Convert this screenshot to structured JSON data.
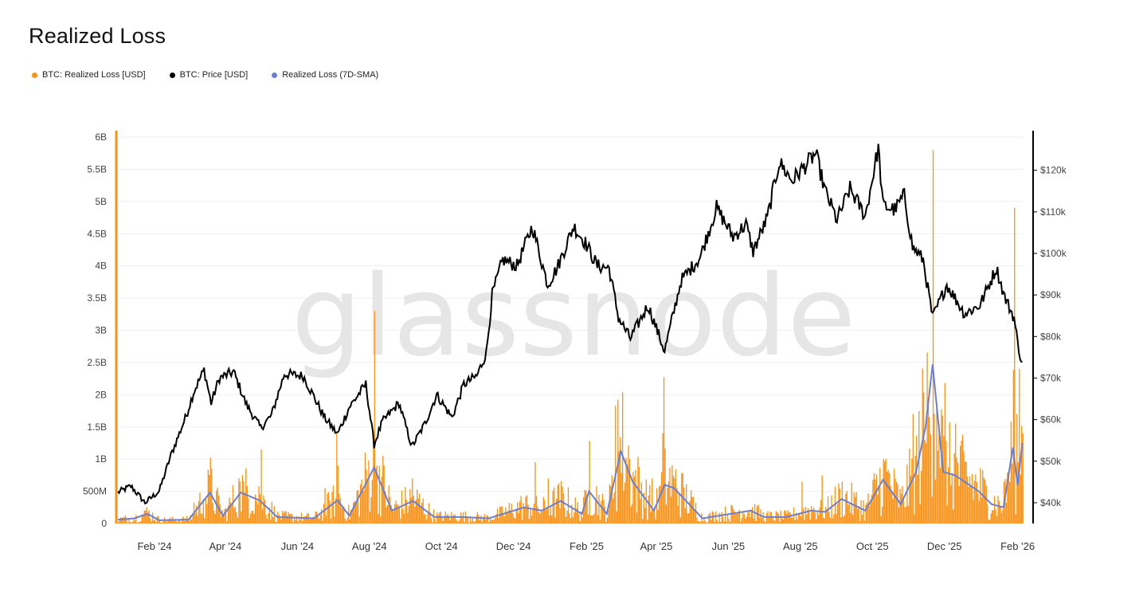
{
  "chart_data": {
    "type": "bar+line",
    "title": "Realized Loss",
    "watermark": "glassnode",
    "legend": [
      {
        "label": "BTC: Realized Loss [USD]",
        "color": "#f7931a"
      },
      {
        "label": "BTC: Price [USD]",
        "color": "#000000"
      },
      {
        "label": "Realized Loss (7D-SMA)",
        "color": "#6b7fcc"
      }
    ],
    "x_ticks": [
      "Feb '24",
      "Apr '24",
      "Jun '24",
      "Aug '24",
      "Oct '24",
      "Dec '24",
      "Feb '25",
      "Apr '25",
      "Jun '25",
      "Aug '25",
      "Oct '25",
      "Dec '25",
      "Feb '26"
    ],
    "y_left_ticks": [
      "0",
      "500M",
      "1B",
      "1.5B",
      "2B",
      "2.5B",
      "3B",
      "3.5B",
      "4B",
      "4.5B",
      "5B",
      "5.5B",
      "6B"
    ],
    "y_left_range": [
      0,
      6000000000
    ],
    "y_right_ticks": [
      "$40k",
      "$50k",
      "$60k",
      "$70k",
      "$80k",
      "$90k",
      "$100k",
      "$110k",
      "$120k"
    ],
    "y_right_range": [
      35000,
      128000
    ],
    "x_range": [
      "2024-01-01",
      "2026-02-06"
    ],
    "series": [
      {
        "name": "BTC: Price [USD]",
        "points": [
          [
            "2024-01-01",
            42500
          ],
          [
            "2024-01-12",
            44000
          ],
          [
            "2024-01-24",
            40000
          ],
          [
            "2024-02-05",
            42800
          ],
          [
            "2024-02-15",
            51500
          ],
          [
            "2024-02-28",
            61000
          ],
          [
            "2024-03-05",
            66500
          ],
          [
            "2024-03-14",
            72000
          ],
          [
            "2024-03-20",
            64000
          ],
          [
            "2024-03-27",
            70000
          ],
          [
            "2024-04-08",
            71500
          ],
          [
            "2024-04-19",
            63500
          ],
          [
            "2024-05-01",
            58000
          ],
          [
            "2024-05-10",
            61000
          ],
          [
            "2024-05-21",
            71000
          ],
          [
            "2024-06-06",
            70500
          ],
          [
            "2024-06-24",
            60500
          ],
          [
            "2024-07-05",
            56500
          ],
          [
            "2024-07-15",
            63000
          ],
          [
            "2024-07-29",
            68500
          ],
          [
            "2024-08-05",
            54000
          ],
          [
            "2024-08-12",
            59500
          ],
          [
            "2024-08-26",
            64000
          ],
          [
            "2024-09-06",
            53500
          ],
          [
            "2024-09-17",
            59000
          ],
          [
            "2024-09-27",
            66000
          ],
          [
            "2024-10-10",
            60500
          ],
          [
            "2024-10-20",
            68500
          ],
          [
            "2024-10-31",
            70500
          ],
          [
            "2024-11-08",
            76000
          ],
          [
            "2024-11-13",
            90000
          ],
          [
            "2024-11-22",
            98500
          ],
          [
            "2024-12-04",
            97000
          ],
          [
            "2024-12-17",
            106500
          ],
          [
            "2024-12-30",
            92500
          ],
          [
            "2025-01-07",
            96500
          ],
          [
            "2025-01-21",
            106500
          ],
          [
            "2025-01-31",
            102500
          ],
          [
            "2025-02-10",
            97000
          ],
          [
            "2025-02-20",
            96500
          ],
          [
            "2025-02-28",
            84500
          ],
          [
            "2025-03-10",
            79500
          ],
          [
            "2025-03-25",
            87500
          ],
          [
            "2025-04-08",
            76500
          ],
          [
            "2025-04-22",
            93500
          ],
          [
            "2025-05-08",
            99000
          ],
          [
            "2025-05-22",
            111000
          ],
          [
            "2025-06-05",
            104000
          ],
          [
            "2025-06-16",
            107000
          ],
          [
            "2025-06-22",
            100500
          ],
          [
            "2025-07-04",
            108500
          ],
          [
            "2025-07-14",
            122000
          ],
          [
            "2025-07-25",
            117500
          ],
          [
            "2025-08-14",
            124000
          ],
          [
            "2025-08-22",
            115000
          ],
          [
            "2025-09-01",
            108000
          ],
          [
            "2025-09-12",
            115500
          ],
          [
            "2025-09-25",
            109000
          ],
          [
            "2025-10-06",
            125500
          ],
          [
            "2025-10-10",
            111500
          ],
          [
            "2025-10-20",
            110500
          ],
          [
            "2025-10-28",
            114000
          ],
          [
            "2025-11-04",
            101500
          ],
          [
            "2025-11-13",
            98500
          ],
          [
            "2025-11-21",
            84500
          ],
          [
            "2025-12-03",
            92500
          ],
          [
            "2025-12-18",
            85500
          ],
          [
            "2025-12-31",
            87500
          ],
          [
            "2026-01-14",
            96500
          ],
          [
            "2026-01-21",
            89500
          ],
          [
            "2026-01-29",
            84500
          ],
          [
            "2026-02-01",
            78500
          ],
          [
            "2026-02-05",
            73000
          ]
        ]
      },
      {
        "name": "Realized Loss (7D-SMA)",
        "points": [
          [
            "2024-01-01",
            60000000
          ],
          [
            "2024-01-15",
            80000000
          ],
          [
            "2024-01-26",
            150000000
          ],
          [
            "2024-02-05",
            50000000
          ],
          [
            "2024-03-01",
            60000000
          ],
          [
            "2024-03-19",
            480000000
          ],
          [
            "2024-03-30",
            120000000
          ],
          [
            "2024-04-14",
            480000000
          ],
          [
            "2024-04-30",
            360000000
          ],
          [
            "2024-05-15",
            100000000
          ],
          [
            "2024-06-15",
            80000000
          ],
          [
            "2024-07-05",
            360000000
          ],
          [
            "2024-07-15",
            120000000
          ],
          [
            "2024-08-05",
            870000000
          ],
          [
            "2024-08-20",
            200000000
          ],
          [
            "2024-09-07",
            350000000
          ],
          [
            "2024-09-25",
            100000000
          ],
          [
            "2024-10-20",
            100000000
          ],
          [
            "2024-11-10",
            80000000
          ],
          [
            "2024-12-10",
            250000000
          ],
          [
            "2024-12-25",
            200000000
          ],
          [
            "2025-01-10",
            350000000
          ],
          [
            "2025-01-28",
            150000000
          ],
          [
            "2025-02-03",
            500000000
          ],
          [
            "2025-02-18",
            150000000
          ],
          [
            "2025-03-02",
            1120000000
          ],
          [
            "2025-03-12",
            650000000
          ],
          [
            "2025-03-30",
            200000000
          ],
          [
            "2025-04-08",
            600000000
          ],
          [
            "2025-04-16",
            550000000
          ],
          [
            "2025-05-10",
            80000000
          ],
          [
            "2025-06-20",
            200000000
          ],
          [
            "2025-07-01",
            100000000
          ],
          [
            "2025-07-20",
            100000000
          ],
          [
            "2025-08-10",
            200000000
          ],
          [
            "2025-08-22",
            180000000
          ],
          [
            "2025-09-05",
            380000000
          ],
          [
            "2025-09-25",
            200000000
          ],
          [
            "2025-10-10",
            680000000
          ],
          [
            "2025-10-25",
            300000000
          ],
          [
            "2025-11-07",
            800000000
          ],
          [
            "2025-11-15",
            1500000000
          ],
          [
            "2025-11-21",
            2470000000
          ],
          [
            "2025-11-30",
            800000000
          ],
          [
            "2025-12-10",
            750000000
          ],
          [
            "2025-12-30",
            500000000
          ],
          [
            "2026-01-10",
            300000000
          ],
          [
            "2026-01-20",
            250000000
          ],
          [
            "2026-01-28",
            1180000000
          ],
          [
            "2026-02-01",
            600000000
          ],
          [
            "2026-02-05",
            1250000000
          ]
        ]
      },
      {
        "name": "BTC: Realized Loss [USD]",
        "spikes": [
          [
            "2024-01-24",
            200000000
          ],
          [
            "2024-03-05",
            320000000
          ],
          [
            "2024-03-13",
            380000000
          ],
          [
            "2024-03-19",
            1020000000
          ],
          [
            "2024-04-13",
            650000000
          ],
          [
            "2024-04-17",
            480000000
          ],
          [
            "2024-04-30",
            450000000
          ],
          [
            "2024-05-01",
            1150000000
          ],
          [
            "2024-06-24",
            550000000
          ],
          [
            "2024-07-04",
            1400000000
          ],
          [
            "2024-07-05",
            900000000
          ],
          [
            "2024-08-05",
            3300000000
          ],
          [
            "2024-08-07",
            900000000
          ],
          [
            "2024-09-06",
            700000000
          ],
          [
            "2024-12-19",
            950000000
          ],
          [
            "2024-12-30",
            700000000
          ],
          [
            "2025-02-03",
            1280000000
          ],
          [
            "2025-02-25",
            1830000000
          ],
          [
            "2025-02-27",
            1920000000
          ],
          [
            "2025-03-09",
            1000000000
          ],
          [
            "2025-03-28",
            700000000
          ],
          [
            "2025-04-06",
            1400000000
          ],
          [
            "2025-04-07",
            2270000000
          ],
          [
            "2025-04-16",
            700000000
          ],
          [
            "2025-08-02",
            650000000
          ],
          [
            "2025-08-19",
            750000000
          ],
          [
            "2025-10-10",
            1000000000
          ],
          [
            "2025-11-04",
            1700000000
          ],
          [
            "2025-11-14",
            1300000000
          ],
          [
            "2025-11-18",
            1650000000
          ],
          [
            "2025-11-21",
            5800000000
          ],
          [
            "2025-11-26",
            1550000000
          ],
          [
            "2025-12-01",
            2180000000
          ],
          [
            "2025-12-10",
            1550000000
          ],
          [
            "2026-01-20",
            650000000
          ],
          [
            "2026-01-29",
            4900000000
          ],
          [
            "2026-01-31",
            1700000000
          ],
          [
            "2026-02-02",
            2400000000
          ],
          [
            "2026-02-05",
            1400000000
          ]
        ]
      }
    ]
  }
}
